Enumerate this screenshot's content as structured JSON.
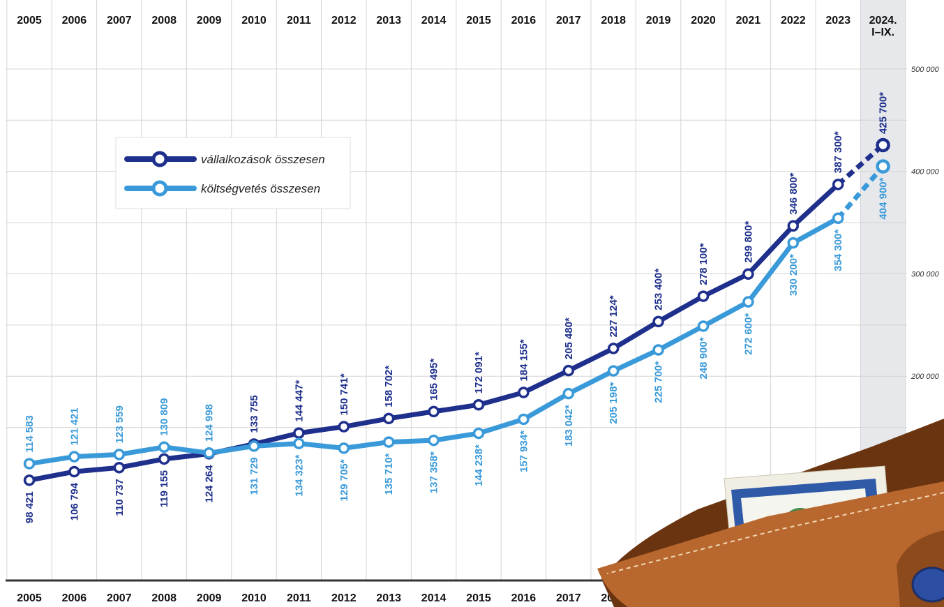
{
  "chart_data": {
    "type": "line",
    "categories": [
      "2005",
      "2006",
      "2007",
      "2008",
      "2009",
      "2010",
      "2011",
      "2012",
      "2013",
      "2014",
      "2015",
      "2016",
      "2017",
      "2018",
      "2019",
      "2020",
      "2021",
      "2022",
      "2023",
      "2024. I–IX."
    ],
    "category_lines": [
      [
        "2005"
      ],
      [
        "2006"
      ],
      [
        "2007"
      ],
      [
        "2008"
      ],
      [
        "2009"
      ],
      [
        "2010"
      ],
      [
        "2011"
      ],
      [
        "2012"
      ],
      [
        "2013"
      ],
      [
        "2014"
      ],
      [
        "2015"
      ],
      [
        "2016"
      ],
      [
        "2017"
      ],
      [
        "2018"
      ],
      [
        "2019"
      ],
      [
        "2020"
      ],
      [
        "2021"
      ],
      [
        "2022"
      ],
      [
        "2023"
      ],
      [
        "2024.",
        "I–IX."
      ]
    ],
    "ylim": [
      50000,
      550000
    ],
    "yticks": [
      200000,
      300000,
      400000,
      500000
    ],
    "ytick_labels": [
      "200 000",
      "300 000",
      "400 000",
      "500 000"
    ],
    "grid": true,
    "legend_position": "upper-left",
    "series": [
      {
        "name": "vállalkozások összesen",
        "color": "#1e2f8c",
        "values": [
          98421,
          106794,
          110737,
          119155,
          124264,
          133755,
          144447,
          150741,
          158702,
          165495,
          172091,
          184155,
          205480,
          227124,
          253400,
          278100,
          299800,
          346800,
          387300,
          425700
        ],
        "labels": [
          "98 421",
          "106 794",
          "110 737",
          "119 155",
          "124 264",
          "133 755",
          "144 447*",
          "150 741*",
          "158 702*",
          "165 495*",
          "172 091*",
          "184 155*",
          "205 480*",
          "227 124*",
          "253 400*",
          "278 100*",
          "299 800*",
          "346 800*",
          "387 300*",
          "425 700*"
        ]
      },
      {
        "name": "költségvetés összesen",
        "color": "#3a9ad9",
        "values": [
          114583,
          121421,
          123559,
          130809,
          124998,
          131729,
          134323,
          129705,
          135710,
          137358,
          144238,
          157934,
          183042,
          205198,
          225700,
          248900,
          272600,
          330200,
          354300,
          404900
        ],
        "labels": [
          "114 583",
          "121 421",
          "123 559",
          "130 809",
          "124 998",
          "131 729",
          "134 323*",
          "129 705*",
          "135 710*",
          "137 358*",
          "144 238*",
          "157 934*",
          "183 042*",
          "205 198*",
          "225 700*",
          "248 900*",
          "272 600*",
          "330 200*",
          "354 300*",
          "404 900*"
        ]
      }
    ]
  },
  "colors": {
    "highlight_column": "#e6e8ec",
    "grid": "#d4d4d4",
    "bottom_axis": "#333333",
    "wallet_leather": "#b8682e",
    "wallet_dark": "#6b3410",
    "card_blue": "#2f5aa8"
  },
  "decoration": {
    "wallet_icon": "wallet-with-banknote-icon"
  }
}
